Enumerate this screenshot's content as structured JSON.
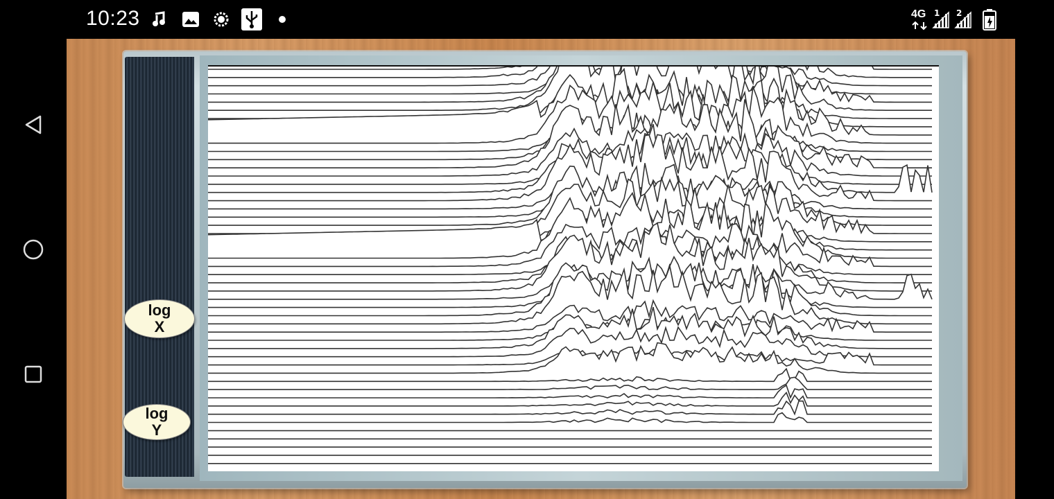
{
  "status_bar": {
    "time": "10:23",
    "icons_left": [
      "music-note-icon",
      "image-icon",
      "brightness-icon",
      "usb-icon",
      "dot-icon"
    ],
    "network_label": "4G",
    "sim1_label": "1",
    "sim2_label": "2",
    "battery_level": 0.7
  },
  "nav": {
    "buttons": [
      "back-icon",
      "home-icon",
      "recents-icon"
    ]
  },
  "app": {
    "log_x": {
      "line1": "log",
      "line2": "X"
    },
    "log_y": {
      "line1": "log",
      "line2": "Y"
    }
  },
  "colors": {
    "plot_line": "#333333",
    "plot_bg": "#ffffff",
    "button_fill": "#fbf8dc"
  }
}
